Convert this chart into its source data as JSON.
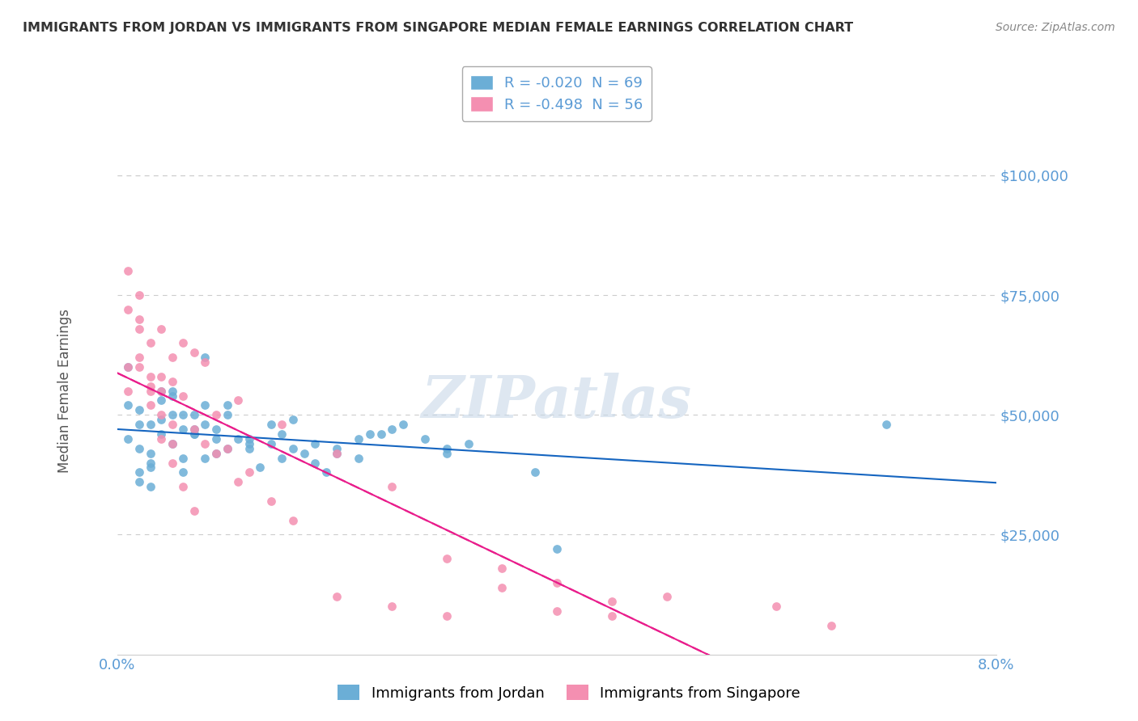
{
  "title": "IMMIGRANTS FROM JORDAN VS IMMIGRANTS FROM SINGAPORE MEDIAN FEMALE EARNINGS CORRELATION CHART",
  "source": "Source: ZipAtlas.com",
  "watermark": "ZIPatlas",
  "xlabel": "",
  "ylabel": "Median Female Earnings",
  "xlim": [
    0.0,
    0.08
  ],
  "ylim": [
    0,
    110000
  ],
  "yticks": [
    0,
    25000,
    50000,
    75000,
    100000
  ],
  "ytick_labels": [
    "",
    "$25,000",
    "$50,000",
    "$75,000",
    "$100,000"
  ],
  "xtick_labels": [
    "0.0%",
    "",
    "",
    "",
    "",
    "",
    "",
    "",
    "8.0%"
  ],
  "jordan_color": "#6baed6",
  "singapore_color": "#f48fb1",
  "jordan_line_color": "#1565c0",
  "singapore_line_color": "#e91e8c",
  "jordan_R": -0.02,
  "jordan_N": 69,
  "singapore_R": -0.498,
  "singapore_N": 56,
  "jordan_label": "Immigrants from Jordan",
  "singapore_label": "Immigrants from Singapore",
  "title_color": "#333333",
  "axis_color": "#5b9bd5",
  "watermark_color": "#c8d8e8",
  "jordan_x": [
    0.001,
    0.002,
    0.001,
    0.003,
    0.002,
    0.004,
    0.001,
    0.003,
    0.005,
    0.002,
    0.006,
    0.004,
    0.003,
    0.007,
    0.002,
    0.005,
    0.008,
    0.003,
    0.004,
    0.006,
    0.009,
    0.005,
    0.007,
    0.01,
    0.003,
    0.006,
    0.008,
    0.012,
    0.004,
    0.007,
    0.009,
    0.014,
    0.005,
    0.008,
    0.011,
    0.016,
    0.006,
    0.009,
    0.013,
    0.018,
    0.007,
    0.01,
    0.015,
    0.02,
    0.008,
    0.012,
    0.017,
    0.023,
    0.01,
    0.014,
    0.019,
    0.025,
    0.012,
    0.016,
    0.022,
    0.028,
    0.015,
    0.02,
    0.026,
    0.032,
    0.018,
    0.024,
    0.03,
    0.038,
    0.022,
    0.03,
    0.04,
    0.07,
    0.002
  ],
  "jordan_y": [
    45000,
    48000,
    52000,
    42000,
    38000,
    55000,
    60000,
    35000,
    50000,
    43000,
    47000,
    53000,
    40000,
    46000,
    51000,
    44000,
    62000,
    39000,
    49000,
    41000,
    45000,
    54000,
    47000,
    43000,
    48000,
    38000,
    52000,
    44000,
    46000,
    50000,
    42000,
    48000,
    55000,
    41000,
    45000,
    43000,
    50000,
    47000,
    39000,
    44000,
    46000,
    52000,
    41000,
    43000,
    48000,
    45000,
    42000,
    46000,
    50000,
    44000,
    38000,
    47000,
    43000,
    49000,
    41000,
    45000,
    46000,
    42000,
    48000,
    44000,
    40000,
    46000,
    43000,
    38000,
    45000,
    42000,
    22000,
    48000,
    36000
  ],
  "singapore_x": [
    0.001,
    0.002,
    0.001,
    0.003,
    0.001,
    0.004,
    0.002,
    0.005,
    0.001,
    0.003,
    0.006,
    0.002,
    0.004,
    0.007,
    0.002,
    0.005,
    0.008,
    0.003,
    0.004,
    0.006,
    0.009,
    0.003,
    0.005,
    0.011,
    0.004,
    0.007,
    0.01,
    0.002,
    0.005,
    0.008,
    0.012,
    0.003,
    0.006,
    0.009,
    0.014,
    0.004,
    0.007,
    0.011,
    0.016,
    0.005,
    0.02,
    0.025,
    0.03,
    0.035,
    0.04,
    0.045,
    0.05,
    0.03,
    0.025,
    0.02,
    0.04,
    0.035,
    0.045,
    0.015,
    0.06,
    0.065
  ],
  "singapore_y": [
    60000,
    75000,
    80000,
    65000,
    55000,
    68000,
    70000,
    62000,
    72000,
    58000,
    65000,
    60000,
    55000,
    63000,
    68000,
    57000,
    61000,
    52000,
    58000,
    54000,
    50000,
    55000,
    48000,
    53000,
    45000,
    47000,
    43000,
    62000,
    40000,
    44000,
    38000,
    56000,
    35000,
    42000,
    32000,
    50000,
    30000,
    36000,
    28000,
    44000,
    12000,
    10000,
    8000,
    14000,
    9000,
    11000,
    12000,
    20000,
    35000,
    42000,
    15000,
    18000,
    8000,
    48000,
    10000,
    6000
  ]
}
